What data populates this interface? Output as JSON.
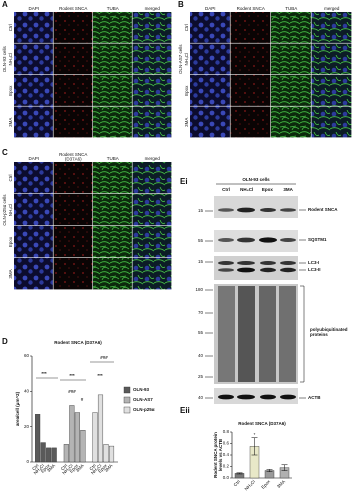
{
  "panels": [
    {
      "label": "A",
      "columns": [
        "DAPI",
        "Rodent SNCA",
        "TUBA",
        "merged"
      ],
      "rows": [
        "Ctrl",
        "NH₄Cl",
        "Epox",
        "3MA"
      ],
      "cell_line": "OLN-93 cells"
    },
    {
      "label": "B",
      "columns": [
        "DAPI",
        "Rodent SNCA",
        "TUBA",
        "merged"
      ],
      "rows": [
        "Ctrl",
        "NH₄Cl",
        "Epox",
        "3MA"
      ],
      "cell_line": "OLN-AS7 cells"
    },
    {
      "label": "C",
      "columns": [
        "DAPI",
        [
          "Rodent SNCA",
          "(D37A6)"
        ],
        "TUBA",
        "merged"
      ],
      "rows": [
        "Ctrl",
        "NH₄Cl",
        "Epox",
        "3MA"
      ],
      "cell_line": "OLN-p25α cells"
    }
  ],
  "blot": {
    "label": "Ei",
    "cell_line": "OLN-93 cells",
    "lanes": [
      "Ctrl",
      "NH₄Cl",
      "Epox",
      "3MA"
    ],
    "markers": [
      15,
      55,
      15,
      180,
      70,
      55,
      40,
      25,
      40
    ],
    "proteins": [
      "Rodent SNCA",
      "SQSTM1",
      "LC3-I",
      "LC3-II",
      [
        "polyubiquitinated",
        "proteins"
      ],
      "ACTB"
    ]
  },
  "chart_data": [
    {
      "type": "grouped-bar",
      "label": "D",
      "title": "Rodent SNCA (D37A6)",
      "y_label": "area/cell (μm^2)",
      "categories": [
        "Ctrl",
        "NH₄Cl",
        "Epox",
        "3MA"
      ],
      "series": [
        {
          "name": "OLN-93",
          "color": "#5a5a5a",
          "values": [
            27,
            11,
            8,
            8
          ]
        },
        {
          "name": "OLN-AS7",
          "color": "#b4b4b4",
          "values": [
            10,
            32,
            28,
            18
          ]
        },
        {
          "name": "OLN-p25α",
          "color": "#e0e0e0",
          "values": [
            28,
            38,
            10,
            9
          ]
        }
      ],
      "ylim": [
        0,
        60
      ],
      "yticks": [
        0,
        20,
        40,
        60
      ],
      "annotations": [
        "***",
        "***",
        "***",
        "###",
        "#",
        "###"
      ]
    },
    {
      "type": "bar",
      "label": "Eii",
      "title": "Rodent SNCA (D37A6)",
      "y_label": [
        "Rodent SNCA protein",
        "levels vs ACTB"
      ],
      "categories": [
        "Ctrl",
        "NH₄Cl",
        "Epox",
        "3MA"
      ],
      "values": [
        0.08,
        0.55,
        0.13,
        0.18
      ],
      "errors": [
        0.01,
        0.15,
        0.02,
        0.05
      ],
      "colors": [
        "#7a7a7a",
        "#e8e8c8",
        "#9a9a9a",
        "#b0b0b0"
      ],
      "ylim": [
        0,
        0.8
      ],
      "yticks": [
        {
          "value": 0,
          "label": "0.0"
        },
        {
          "value": 0.2,
          "label": "0.2"
        },
        {
          "value": 0.4,
          "label": "0.4"
        },
        {
          "value": 0.6,
          "label": "0.6"
        },
        {
          "value": 0.8,
          "label": "0.8"
        }
      ],
      "annotations": [
        "*"
      ]
    }
  ]
}
